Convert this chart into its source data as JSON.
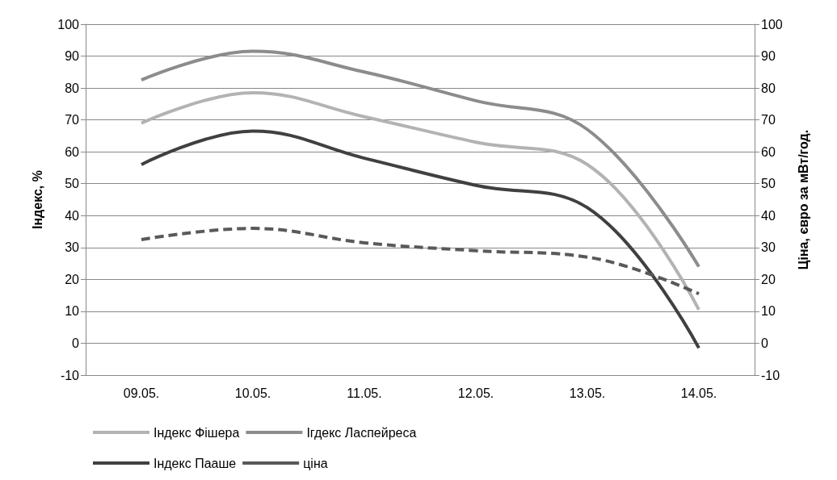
{
  "chart_data": {
    "type": "line",
    "ylabel": "Індекс, %",
    "y2label": "Ціна, євро за мВт/год.",
    "categories": [
      "09.05.",
      "10.05.",
      "11.05.",
      "12.05.",
      "13.05.",
      "14.05."
    ],
    "series": [
      {
        "name": "Індекс Фішера",
        "color": "#b3b3b3",
        "values": [
          69,
          78.5,
          71,
          63,
          56,
          10.5
        ]
      },
      {
        "name": "Ігдекс Ласпейреса",
        "color": "#8c8c8c",
        "values": [
          82.5,
          91.5,
          85,
          76,
          67,
          24
        ]
      },
      {
        "name": "Індекс Пааше",
        "color": "#404040",
        "values": [
          56,
          66.5,
          58,
          49.5,
          42.5,
          -1.5
        ]
      },
      {
        "name": "ціна",
        "color": "#595959",
        "axis": "y2",
        "line_style": "dashed",
        "values": [
          32.5,
          36,
          31.5,
          29,
          27,
          15.5
        ]
      }
    ],
    "ylim": [
      -10,
      100
    ],
    "yticks": [
      -10,
      0,
      10,
      20,
      30,
      40,
      50,
      60,
      70,
      80,
      90,
      100
    ],
    "y2lim": [
      -10,
      100
    ],
    "y2ticks": [
      -10,
      0,
      10,
      20,
      30,
      40,
      50,
      60,
      70,
      80,
      90,
      100
    ],
    "grid": "y",
    "legend": "bottom",
    "marker": "none"
  }
}
